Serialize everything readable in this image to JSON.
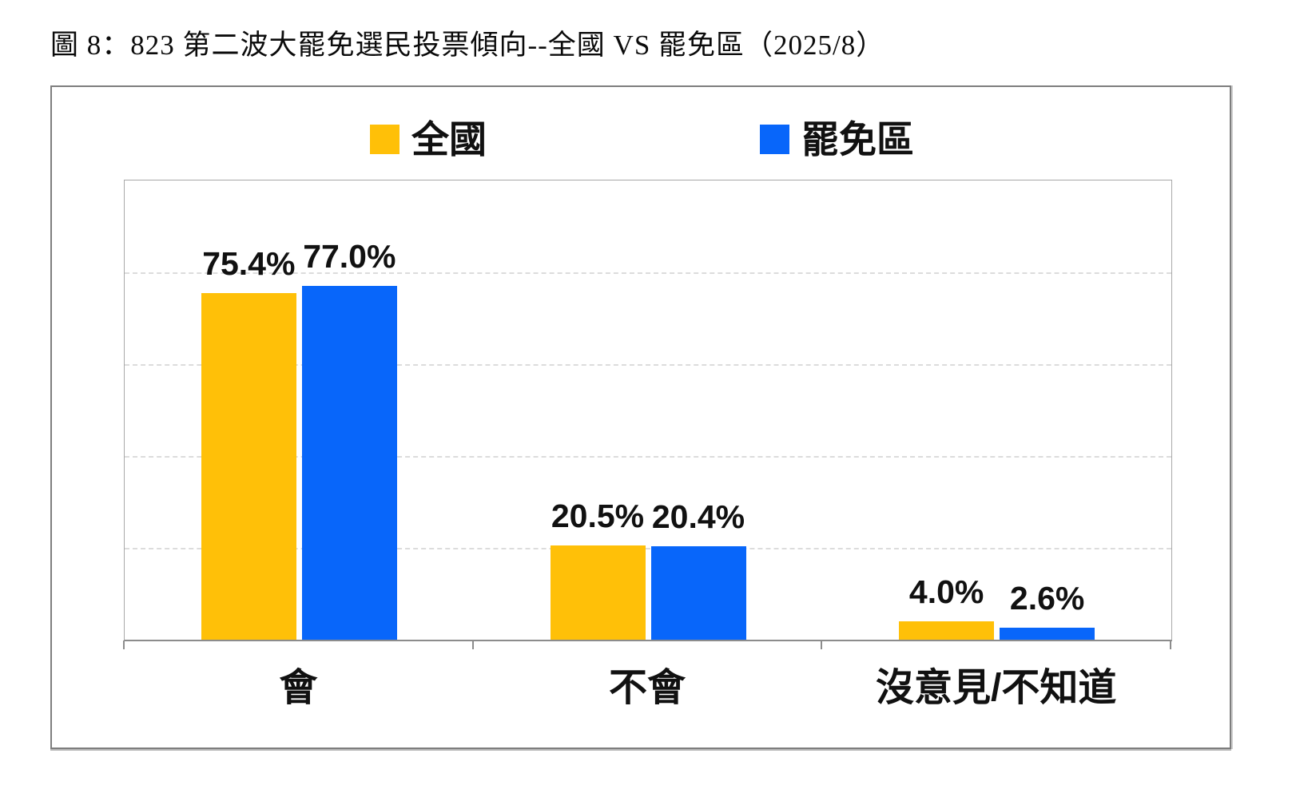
{
  "title": "圖 8：823 第二波大罷免選民投票傾向--全國 VS 罷免區（2025/8）",
  "colors": {
    "national_yellow": "#FFC008",
    "recall_blue": "#0866FA",
    "grid_line": "#DCDCDC",
    "frame_border": "#7E7E7E",
    "plot_border": "#A8A8A8",
    "axis_line": "#8C8C8C",
    "text": "#111111"
  },
  "chart_data": {
    "type": "bar",
    "title": "圖 8：823 第二波大罷免選民投票傾向--全國 VS 罷免區（2025/8）",
    "categories": [
      "會",
      "不會",
      "沒意見/不知道"
    ],
    "series": [
      {
        "key": "national",
        "name": "全國",
        "color": "#FFC008",
        "values": [
          75.4,
          20.5,
          4.0
        ],
        "data_labels": [
          "75.4%",
          "20.5%",
          "4.0%"
        ]
      },
      {
        "key": "recall",
        "name": "罷免區",
        "color": "#0866FA",
        "values": [
          77.0,
          20.4,
          2.6
        ],
        "data_labels": [
          "77.0%",
          "20.4%",
          "2.6%"
        ]
      }
    ],
    "ylim": [
      0,
      100
    ],
    "y_gridlines_at": [
      20,
      40,
      60,
      80
    ],
    "grid_style": "dashed-horizontal",
    "y_axis_labels_visible": false,
    "legend_position": "top-center",
    "data_labels_visible": true
  }
}
